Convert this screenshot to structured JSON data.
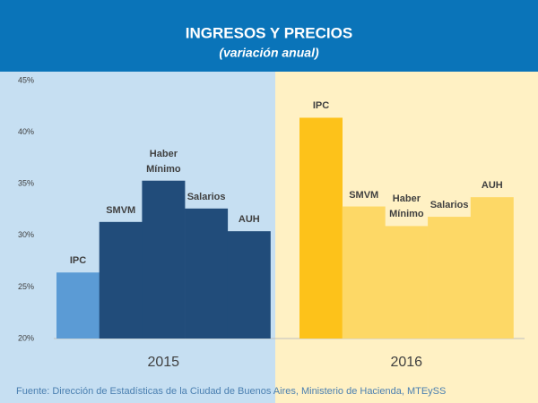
{
  "chart_data": {
    "type": "bar",
    "title": "INGRESOS Y PRECIOS",
    "subtitle": "(variación anual)",
    "ylim": [
      20,
      45
    ],
    "yticks": [
      {
        "value": 20,
        "label": "20%"
      },
      {
        "value": 25,
        "label": "25%"
      },
      {
        "value": 30,
        "label": "30%"
      },
      {
        "value": 35,
        "label": "35%"
      },
      {
        "value": 40,
        "label": "40%"
      },
      {
        "value": 45,
        "label": "45%"
      }
    ],
    "groups": [
      {
        "name": "2015",
        "background": "#c6dff2",
        "categories": [
          "IPC",
          "SMVM",
          "Haber Mínimo",
          "Salarios",
          "AUH"
        ],
        "values": [
          26.4,
          31.3,
          35.3,
          32.6,
          30.4
        ],
        "colors": [
          "#5b9bd5",
          "#214c7a",
          "#214c7a",
          "#214c7a",
          "#214c7a"
        ]
      },
      {
        "name": "2016",
        "background": "#fff1c4",
        "categories": [
          "IPC",
          "SMVM",
          "Haber Mínimo",
          "Salarios",
          "AUH"
        ],
        "values": [
          41.4,
          32.8,
          30.9,
          31.8,
          33.7
        ],
        "colors": [
          "#fdc21a",
          "#fdd866",
          "#fdd866",
          "#fdd866",
          "#fdd866"
        ]
      }
    ],
    "source": "Fuente:  Dirección de Estadísticas de la Ciudad de Buenos Aires, Ministerio de Hacienda, MTEySS"
  }
}
